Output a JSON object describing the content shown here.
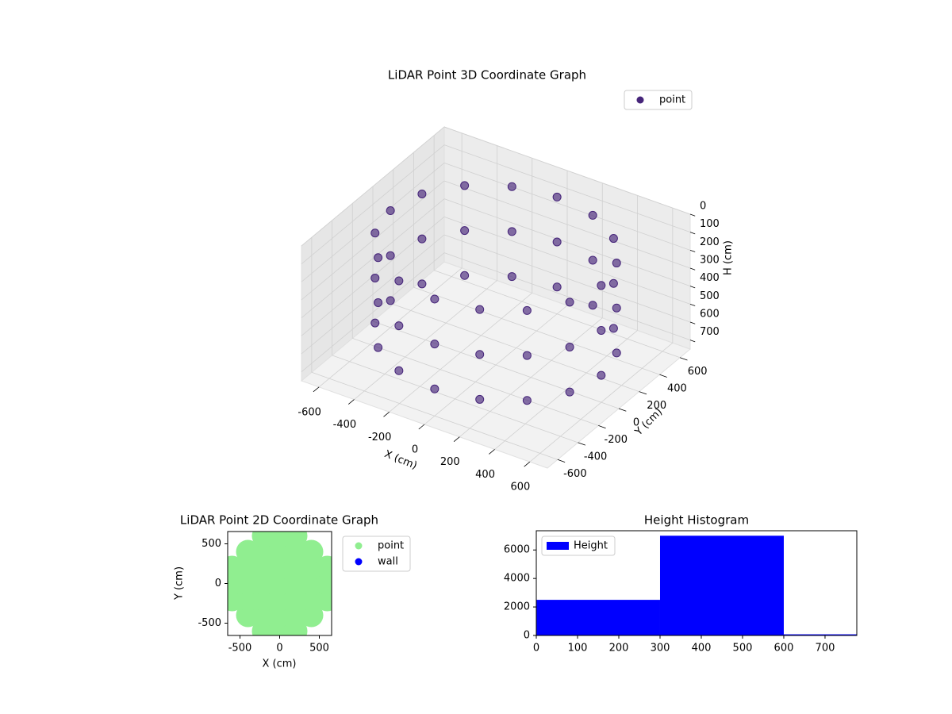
{
  "chart_data": [
    {
      "type": "scatter3d",
      "title": "LiDAR Point 3D Coordinate Graph",
      "xlabel": "X (cm)",
      "ylabel": "Y (cm)",
      "zlabel": "H (cm)",
      "xlim": [
        -700,
        700
      ],
      "ylim": [
        -700,
        700
      ],
      "zlim": [
        0,
        750
      ],
      "z_inverted": true,
      "xticks": [
        -600,
        -400,
        -200,
        0,
        200,
        400,
        600
      ],
      "yticks": [
        -600,
        -400,
        -200,
        0,
        200,
        400,
        600
      ],
      "zticks": [
        0,
        100,
        200,
        300,
        400,
        500,
        600,
        700
      ],
      "grid": true,
      "legend": "upper right",
      "series": [
        {
          "name": "point",
          "color": "#46257a",
          "x": [
            600,
            554,
            424,
            230,
            0,
            -230,
            -424,
            -554,
            -600,
            -554,
            -424,
            -230,
            0,
            230,
            424,
            554,
            600,
            554,
            424,
            230,
            0,
            -230,
            -424,
            -554,
            -600,
            -554,
            -424,
            -230,
            0,
            230,
            424,
            554,
            600,
            554,
            424,
            230,
            0,
            -230,
            -424,
            -554,
            -600,
            -554,
            -424,
            -230,
            0,
            230,
            424,
            554
          ],
          "y": [
            0,
            230,
            424,
            554,
            600,
            554,
            424,
            230,
            0,
            -230,
            -424,
            -554,
            -600,
            -554,
            -424,
            -230,
            0,
            230,
            424,
            554,
            600,
            554,
            424,
            230,
            0,
            -230,
            -424,
            -554,
            -600,
            -554,
            -424,
            -230,
            0,
            230,
            424,
            554,
            600,
            554,
            424,
            230,
            0,
            -230,
            -424,
            -554,
            -600,
            -554,
            -424,
            -230
          ],
          "z": [
            100,
            100,
            100,
            100,
            100,
            100,
            100,
            100,
            100,
            100,
            100,
            100,
            100,
            100,
            100,
            100,
            350,
            350,
            350,
            350,
            350,
            350,
            350,
            350,
            350,
            350,
            350,
            350,
            350,
            350,
            350,
            350,
            600,
            600,
            600,
            600,
            600,
            600,
            600,
            600,
            600,
            600,
            600,
            600,
            600,
            600,
            600,
            600
          ]
        }
      ]
    },
    {
      "type": "scatter",
      "title": "LiDAR Point 2D Coordinate Graph",
      "xlabel": "X (cm)",
      "ylabel": "Y (cm)",
      "xlim": [
        -655,
        655
      ],
      "ylim": [
        -655,
        655
      ],
      "xticks": [
        -500,
        0,
        500
      ],
      "yticks": [
        -500,
        0,
        500
      ],
      "legend": "outside upper right",
      "series": [
        {
          "name": "point",
          "color": "#90ee90",
          "x": [
            -200,
            0,
            200,
            -400,
            -200,
            0,
            200,
            400,
            -600,
            -400,
            -200,
            0,
            200,
            400,
            600,
            -600,
            -400,
            -200,
            0,
            200,
            400,
            600,
            -600,
            -400,
            -200,
            0,
            200,
            400,
            600,
            -400,
            -200,
            0,
            200,
            400,
            -200,
            0,
            200
          ],
          "y": [
            -600,
            -600,
            -600,
            -400,
            -400,
            -400,
            -400,
            -400,
            -200,
            -200,
            -200,
            -200,
            -200,
            -200,
            -200,
            0,
            0,
            0,
            0,
            0,
            0,
            0,
            200,
            200,
            200,
            200,
            200,
            200,
            200,
            400,
            400,
            400,
            400,
            400,
            600,
            600,
            600
          ]
        },
        {
          "name": "wall",
          "color": "#0000ff",
          "x": [],
          "y": []
        }
      ]
    },
    {
      "type": "histogram",
      "title": "Height Histogram",
      "bins": [
        0,
        300,
        600,
        900
      ],
      "xlim": [
        0,
        777
      ],
      "ylim": [
        0,
        7350
      ],
      "xticks": [
        0,
        100,
        200,
        300,
        400,
        500,
        600,
        700
      ],
      "yticks": [
        0,
        2000,
        4000,
        6000
      ],
      "legend": "upper left",
      "series": [
        {
          "name": "Height",
          "color": "#0000ff",
          "values": [
            2500,
            7000,
            80
          ]
        }
      ]
    }
  ]
}
